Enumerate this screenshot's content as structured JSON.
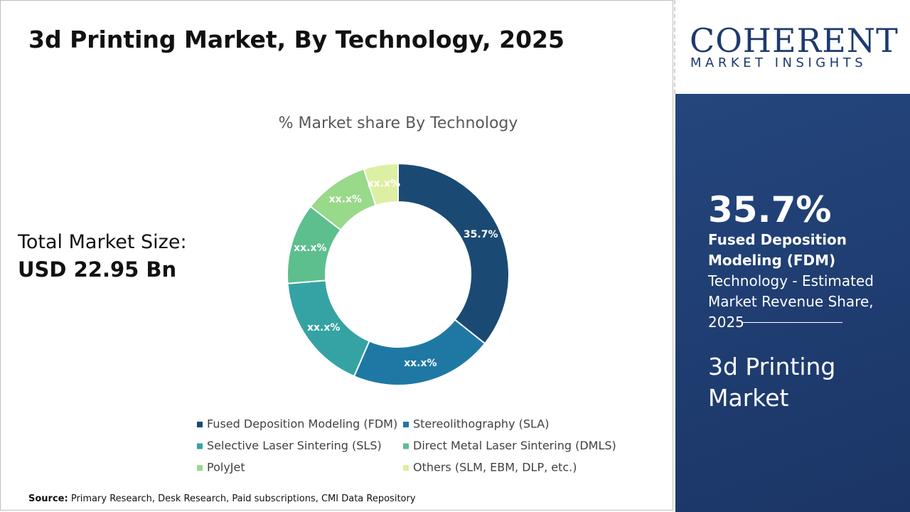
{
  "header": {
    "title": "3d Printing Market, By Technology, 2025"
  },
  "market_size": {
    "label": "Total Market Size:",
    "value": "USD 22.95 Bn"
  },
  "logo": {
    "name": "COHERENT",
    "tagline": "MARKET INSIGHTS"
  },
  "highlight": {
    "value": "35.7%",
    "segment": "Fused Deposition Modeling (FDM)",
    "description": "Technology - Estimated Market Revenue Share, 2025",
    "market": "3d Printing Market"
  },
  "source": {
    "label": "Source:",
    "text": "Primary Research, Desk Research, Paid subscriptions, CMI Data Repository"
  },
  "chart_data": {
    "type": "donut",
    "title": "% Market share By Technology",
    "categories": [
      "Fused Deposition Modeling (FDM)",
      "Stereolithography (SLA)",
      "Selective Laser Sintering (SLS)",
      "Direct Metal Laser Sintering (DMLS)",
      "PolyJet",
      "Others (SLM, EBM, DLP, etc.)"
    ],
    "values": [
      35.7,
      20.8,
      17.2,
      11.8,
      9.5,
      5.0
    ],
    "value_labels": [
      "35.7%",
      "xx.x%",
      "xx.x%",
      "xx.x%",
      "xx.x%",
      "xx.x%"
    ],
    "colors": [
      "#1a4a73",
      "#1f78a4",
      "#35a3a3",
      "#5dbf8e",
      "#98d98a",
      "#dcefa2"
    ]
  }
}
